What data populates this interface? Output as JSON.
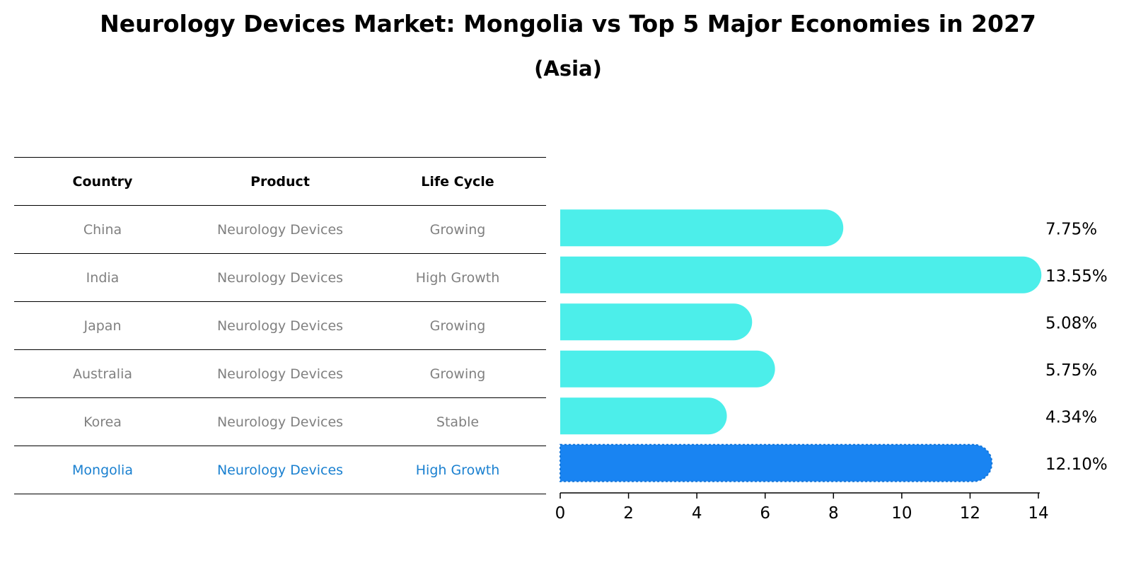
{
  "title": "Neurology Devices Market: Mongolia vs Top 5 Major Economies in 2027",
  "subtitle": "(Asia)",
  "table": {
    "headers": [
      "Country",
      "Product",
      "Life Cycle"
    ],
    "rows": [
      [
        "China",
        "Neurology Devices",
        "Growing"
      ],
      [
        "India",
        "Neurology Devices",
        "High Growth"
      ],
      [
        "Japan",
        "Neurology Devices",
        "Growing"
      ],
      [
        "Australia",
        "Neurology Devices",
        "Growing"
      ],
      [
        "Korea",
        "Neurology Devices",
        "Stable"
      ],
      [
        "Mongolia",
        "Neurology Devices",
        "High Growth"
      ]
    ],
    "highlight_row": 5
  },
  "colors": {
    "bar": "#4ceeea",
    "highlight_bar": "#1984f2",
    "highlight_text": "#1a80d0",
    "muted_text": "#808080"
  },
  "chart_data": {
    "type": "bar",
    "orientation": "horizontal",
    "categories": [
      "China",
      "India",
      "Japan",
      "Australia",
      "Korea",
      "Mongolia"
    ],
    "values": [
      7.75,
      13.55,
      5.08,
      5.75,
      4.34,
      12.1
    ],
    "labels": [
      "7.75%",
      "13.55%",
      "5.08%",
      "5.75%",
      "4.34%",
      "12.10%"
    ],
    "xlim": [
      0,
      14
    ],
    "xticks": [
      0,
      2,
      4,
      6,
      8,
      10,
      12,
      14
    ],
    "highlight_index": 5
  }
}
